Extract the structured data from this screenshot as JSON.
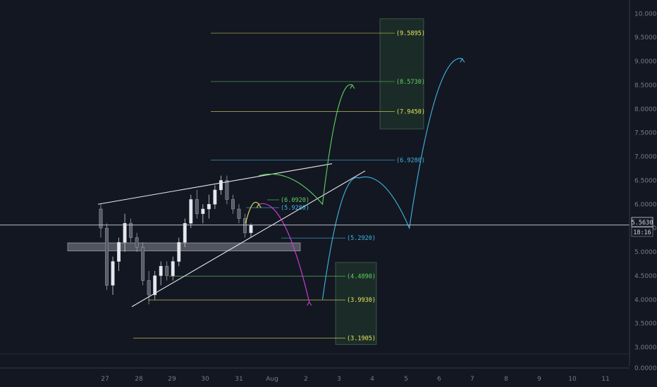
{
  "chart_data": {
    "type": "candlestick",
    "y_axis": {
      "ticks": [
        "10.0000",
        "9.5000",
        "9.0000",
        "8.5000",
        "8.0000",
        "7.5000",
        "7.0000",
        "6.5000",
        "6.0000",
        "5.5000",
        "5.0000",
        "4.5000",
        "4.0000",
        "3.5000",
        "3.0000"
      ],
      "tick_values": [
        10.0,
        9.5,
        9.0,
        8.5,
        8.0,
        7.5,
        7.0,
        6.5,
        6.0,
        5.5,
        5.0,
        4.5,
        4.0,
        3.5,
        3.0
      ],
      "sub_pane_tick": "0.0000"
    },
    "x_axis": {
      "labels": [
        "27",
        "28",
        "29",
        "30",
        "31",
        "Aug",
        "2",
        "3",
        "4",
        "5",
        "6",
        "7",
        "8",
        "9",
        "10",
        "11"
      ]
    },
    "current_price": {
      "value": 5.563,
      "label": "5.5630",
      "countdown": "18:16"
    },
    "fib_levels": [
      {
        "value": 9.5895,
        "label": "(9.5895)",
        "color": "#e6e65c"
      },
      {
        "value": 8.573,
        "label": "(8.5730)",
        "color": "#5fd35f"
      },
      {
        "value": 7.945,
        "label": "(7.9450)",
        "color": "#e6e65c"
      },
      {
        "value": 6.928,
        "label": "(6.9280)",
        "color": "#3fb7e0"
      },
      {
        "value": 6.092,
        "label": "(6.0920)",
        "color": "#5fd35f"
      },
      {
        "value": 5.928,
        "label": "(5.9280)",
        "color": "#3fb7e0"
      },
      {
        "value": 5.292,
        "label": "(5.2920)",
        "color": "#3fb7e0"
      },
      {
        "value": 4.489,
        "label": "(4.4890)",
        "color": "#5fd35f"
      },
      {
        "value": 3.993,
        "label": "(3.9930)",
        "color": "#e6e65c"
      },
      {
        "value": 3.1905,
        "label": "(3.1905)",
        "color": "#e6e65c"
      }
    ],
    "target_zones": [
      {
        "top": 9.89,
        "bottom": 7.58
      },
      {
        "top": 4.78,
        "bottom": 3.06
      }
    ],
    "support_zone": {
      "top": 5.19,
      "bottom": 5.02
    },
    "trendlines": [
      {
        "name": "upper-resistance",
        "from": [
          "27",
          6.0
        ],
        "to": [
          "3",
          6.85
        ]
      },
      {
        "name": "lower-support",
        "from": [
          "28",
          3.85
        ],
        "to": [
          "4",
          6.7
        ]
      }
    ],
    "candles_ohlc_approx": [
      [
        5.9,
        6.0,
        5.3,
        5.5
      ],
      [
        5.5,
        5.6,
        4.2,
        4.3
      ],
      [
        4.3,
        4.9,
        4.1,
        4.8
      ],
      [
        4.8,
        5.3,
        4.6,
        5.2
      ],
      [
        5.2,
        5.8,
        5.0,
        5.6
      ],
      [
        5.6,
        5.7,
        5.2,
        5.3
      ],
      [
        5.3,
        5.4,
        5.0,
        5.1
      ],
      [
        5.1,
        5.2,
        4.3,
        4.4
      ],
      [
        4.4,
        4.6,
        3.9,
        4.1
      ],
      [
        4.1,
        4.6,
        4.0,
        4.5
      ],
      [
        4.5,
        4.8,
        4.3,
        4.7
      ],
      [
        4.7,
        4.8,
        4.4,
        4.5
      ],
      [
        4.5,
        4.9,
        4.4,
        4.8
      ],
      [
        4.8,
        5.3,
        4.7,
        5.2
      ],
      [
        5.2,
        5.7,
        5.1,
        5.6
      ],
      [
        5.6,
        6.2,
        5.5,
        6.1
      ],
      [
        6.1,
        6.3,
        5.7,
        5.8
      ],
      [
        5.8,
        6.0,
        5.6,
        5.9
      ],
      [
        5.9,
        6.2,
        5.7,
        6.0
      ],
      [
        6.0,
        6.4,
        5.9,
        6.3
      ],
      [
        6.3,
        6.6,
        6.2,
        6.5
      ],
      [
        6.5,
        6.6,
        6.0,
        6.1
      ],
      [
        6.1,
        6.2,
        5.8,
        5.9
      ],
      [
        5.9,
        6.0,
        5.6,
        5.7
      ],
      [
        5.7,
        5.8,
        5.3,
        5.4
      ],
      [
        5.4,
        5.6,
        5.3,
        5.56
      ]
    ],
    "projection_arcs": [
      {
        "color": "#5fd35f",
        "path": [
          [
            "31.6",
            6.6
          ],
          [
            "2.5",
            6.0
          ],
          [
            "3.4",
            8.5
          ]
        ]
      },
      {
        "color": "#e6e65c",
        "path": [
          [
            "31.2",
            5.6
          ],
          [
            "31.6",
            6.0
          ]
        ]
      },
      {
        "color": "#d43fe0",
        "path": [
          [
            "31.6",
            6.0
          ],
          [
            "2.1",
            3.95
          ]
        ]
      },
      {
        "color": "#3fb7e0",
        "path": [
          [
            "2.5",
            4.0
          ],
          [
            "3.6",
            6.55
          ],
          [
            "5.1",
            5.5
          ],
          [
            "6.7",
            9.05
          ]
        ]
      }
    ]
  }
}
